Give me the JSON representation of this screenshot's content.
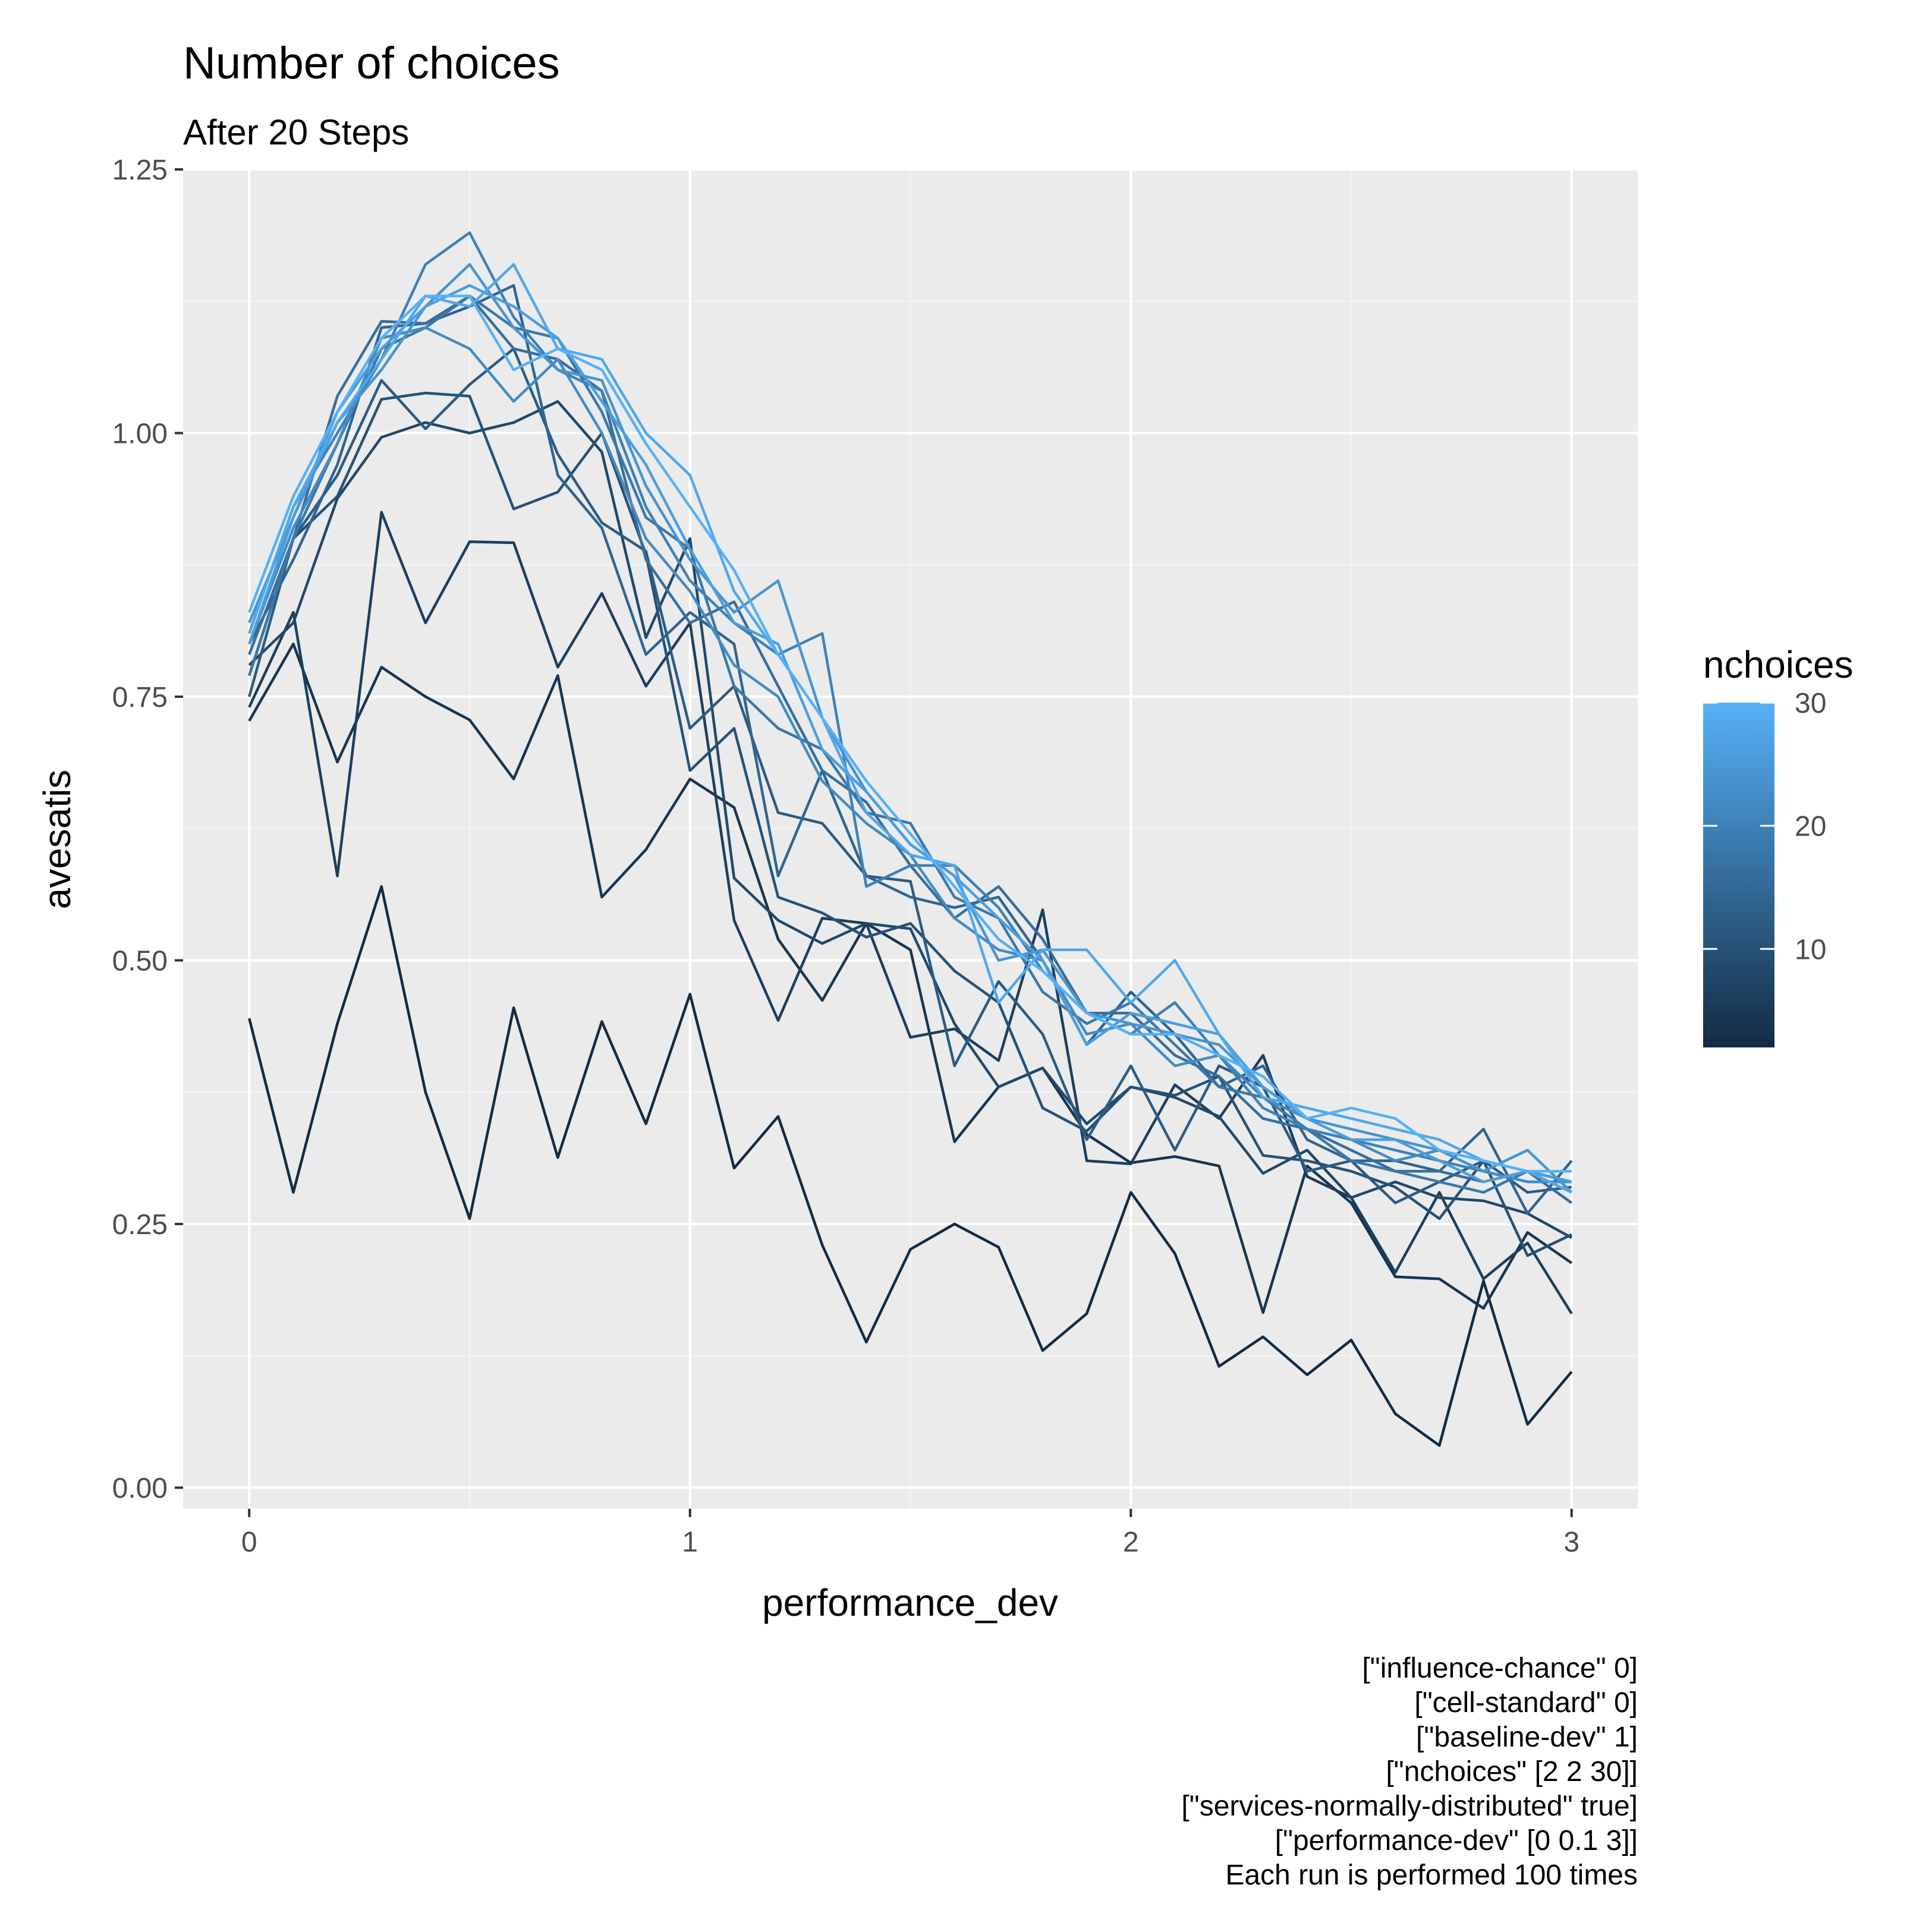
{
  "chart_data": {
    "type": "line",
    "title": "Number of choices",
    "subtitle": "After 20 Steps",
    "xlabel": "performance_dev",
    "ylabel": "avesatis",
    "xlim": [
      -0.15,
      3.15
    ],
    "ylim": [
      -0.02,
      1.25
    ],
    "x_ticks": [
      0,
      1,
      2,
      3
    ],
    "x_tick_labels": [
      "0",
      "1",
      "2",
      "3"
    ],
    "y_ticks": [
      0.0,
      0.25,
      0.5,
      0.75,
      1.0,
      1.25
    ],
    "y_tick_labels": [
      "0.00",
      "0.25",
      "0.50",
      "0.75",
      "1.00",
      "1.25"
    ],
    "grid": true,
    "x": [
      0,
      0.1,
      0.2,
      0.3,
      0.4,
      0.5,
      0.6,
      0.7,
      0.8,
      0.9,
      1.0,
      1.1,
      1.2,
      1.3,
      1.4,
      1.5,
      1.6,
      1.7,
      1.8,
      1.9,
      2.0,
      2.1,
      2.2,
      2.3,
      2.4,
      2.5,
      2.6,
      2.7,
      2.8,
      2.9,
      3.0
    ],
    "legend": {
      "title": "nchoices",
      "type": "colorbar",
      "placement": "right",
      "range": [
        2,
        30
      ],
      "ticks": [
        10,
        20,
        30
      ],
      "tick_labels": [
        "10",
        "20",
        "30"
      ],
      "color_low": "#132B43",
      "color_high": "#56B1F7"
    },
    "series": [
      {
        "nchoices": 2,
        "values": [
          0.445,
          0.28,
          0.44,
          0.57,
          0.375,
          0.255,
          0.455,
          0.313,
          0.442,
          0.345,
          0.468,
          0.303,
          0.352,
          0.23,
          0.138,
          0.226,
          0.25,
          0.228,
          0.13,
          0.165,
          0.28,
          0.222,
          0.115,
          0.143,
          0.107,
          0.14,
          0.07,
          0.04,
          0.196,
          0.06,
          0.11
        ]
      },
      {
        "nchoices": 4,
        "values": [
          0.727,
          0.8,
          0.688,
          0.778,
          0.75,
          0.728,
          0.672,
          0.77,
          0.56,
          0.605,
          0.672,
          0.645,
          0.52,
          0.462,
          0.535,
          0.51,
          0.328,
          0.38,
          0.398,
          0.335,
          0.308,
          0.314,
          0.305,
          0.166,
          0.305,
          0.27,
          0.2,
          0.198,
          0.17,
          0.242,
          0.213
        ]
      },
      {
        "nchoices": 6,
        "values": [
          0.74,
          0.83,
          0.58,
          0.925,
          0.82,
          0.897,
          0.896,
          0.778,
          0.848,
          0.76,
          0.82,
          0.538,
          0.443,
          0.54,
          0.535,
          0.427,
          0.435,
          0.405,
          0.548,
          0.31,
          0.307,
          0.382,
          0.35,
          0.41,
          0.295,
          0.275,
          0.204,
          0.28,
          0.198,
          0.232,
          0.165
        ]
      },
      {
        "nchoices": 8,
        "values": [
          0.78,
          0.82,
          0.938,
          0.996,
          1.01,
          1.0,
          1.01,
          1.03,
          0.982,
          0.806,
          0.9,
          0.578,
          0.538,
          0.516,
          0.535,
          0.53,
          0.44,
          0.38,
          0.398,
          0.345,
          0.38,
          0.37,
          0.352,
          0.298,
          0.32,
          0.275,
          0.29,
          0.275,
          0.272,
          0.26,
          0.237
        ]
      },
      {
        "nchoices": 10,
        "values": [
          0.77,
          0.9,
          0.94,
          1.032,
          1.038,
          1.035,
          0.928,
          0.944,
          1.0,
          0.885,
          0.68,
          0.72,
          0.56,
          0.545,
          0.522,
          0.535,
          0.49,
          0.46,
          0.36,
          0.338,
          0.38,
          0.372,
          0.39,
          0.315,
          0.31,
          0.3,
          0.285,
          0.255,
          0.31,
          0.22,
          0.24
        ]
      },
      {
        "nchoices": 12,
        "values": [
          0.75,
          0.9,
          0.96,
          1.05,
          1.004,
          1.046,
          1.08,
          0.98,
          0.915,
          0.888,
          0.72,
          0.76,
          0.64,
          0.63,
          0.58,
          0.575,
          0.4,
          0.48,
          0.43,
          0.33,
          0.4,
          0.32,
          0.4,
          0.38,
          0.3,
          0.31,
          0.27,
          0.29,
          0.31,
          0.28,
          0.285
        ]
      },
      {
        "nchoices": 14,
        "values": [
          0.8,
          0.88,
          0.97,
          1.1,
          1.104,
          1.12,
          1.14,
          0.96,
          0.91,
          0.79,
          0.83,
          0.8,
          0.58,
          0.68,
          0.58,
          0.56,
          0.55,
          0.56,
          0.5,
          0.42,
          0.47,
          0.43,
          0.38,
          0.4,
          0.33,
          0.31,
          0.31,
          0.3,
          0.34,
          0.26,
          0.31
        ]
      },
      {
        "nchoices": 16,
        "values": [
          0.79,
          0.9,
          1.035,
          1.106,
          1.104,
          1.13,
          1.08,
          1.07,
          1.04,
          0.88,
          0.82,
          0.84,
          0.76,
          0.68,
          0.65,
          0.59,
          0.54,
          0.57,
          0.52,
          0.45,
          0.45,
          0.41,
          0.39,
          0.35,
          0.34,
          0.32,
          0.3,
          0.3,
          0.29,
          0.3,
          0.27
        ]
      },
      {
        "nchoices": 18,
        "values": [
          0.77,
          0.9,
          0.99,
          1.08,
          1.1,
          1.13,
          1.1,
          1.09,
          1.02,
          0.92,
          0.89,
          0.76,
          0.72,
          0.7,
          0.64,
          0.63,
          0.56,
          0.54,
          0.47,
          0.44,
          0.46,
          0.42,
          0.38,
          0.37,
          0.34,
          0.31,
          0.3,
          0.29,
          0.28,
          0.3,
          0.29
        ]
      },
      {
        "nchoices": 20,
        "values": [
          0.81,
          0.93,
          1.0,
          1.07,
          1.16,
          1.19,
          1.11,
          1.06,
          1.04,
          0.93,
          0.86,
          0.82,
          0.79,
          0.81,
          0.57,
          0.59,
          0.59,
          0.55,
          0.49,
          0.45,
          0.43,
          0.46,
          0.41,
          0.36,
          0.34,
          0.33,
          0.32,
          0.31,
          0.3,
          0.29,
          0.29
        ]
      },
      {
        "nchoices": 22,
        "values": [
          0.8,
          0.91,
          0.99,
          1.09,
          1.1,
          1.08,
          1.03,
          1.07,
          1.0,
          0.9,
          0.85,
          0.78,
          0.75,
          0.67,
          0.63,
          0.6,
          0.54,
          0.51,
          0.5,
          0.43,
          0.44,
          0.4,
          0.41,
          0.37,
          0.35,
          0.33,
          0.31,
          0.32,
          0.3,
          0.29,
          0.29
        ]
      },
      {
        "nchoices": 24,
        "values": [
          0.82,
          0.92,
          1.01,
          1.06,
          1.12,
          1.16,
          1.1,
          1.06,
          1.05,
          0.95,
          0.88,
          0.83,
          0.86,
          0.73,
          0.66,
          0.61,
          0.58,
          0.5,
          0.51,
          0.45,
          0.44,
          0.43,
          0.42,
          0.38,
          0.35,
          0.34,
          0.33,
          0.32,
          0.3,
          0.32,
          0.28
        ]
      },
      {
        "nchoices": 26,
        "values": [
          0.8,
          0.92,
          1.02,
          1.08,
          1.12,
          1.14,
          1.12,
          1.09,
          1.03,
          0.97,
          0.89,
          0.82,
          0.8,
          0.7,
          0.66,
          0.61,
          0.58,
          0.54,
          0.5,
          0.42,
          0.45,
          0.44,
          0.43,
          0.38,
          0.35,
          0.33,
          0.33,
          0.31,
          0.29,
          0.3,
          0.29
        ]
      },
      {
        "nchoices": 28,
        "values": [
          0.81,
          0.93,
          1.01,
          1.07,
          1.13,
          1.12,
          1.16,
          1.08,
          1.07,
          1.0,
          0.96,
          0.85,
          0.79,
          0.73,
          0.64,
          0.6,
          0.59,
          0.46,
          0.51,
          0.51,
          0.46,
          0.5,
          0.43,
          0.37,
          0.36,
          0.35,
          0.34,
          0.33,
          0.31,
          0.3,
          0.28
        ]
      },
      {
        "nchoices": 30,
        "values": [
          0.83,
          0.94,
          1.02,
          1.09,
          1.13,
          1.13,
          1.06,
          1.08,
          1.06,
          0.99,
          0.93,
          0.87,
          0.79,
          0.73,
          0.67,
          0.62,
          0.57,
          0.52,
          0.49,
          0.45,
          0.43,
          0.43,
          0.41,
          0.39,
          0.35,
          0.36,
          0.35,
          0.32,
          0.31,
          0.3,
          0.3
        ]
      }
    ],
    "caption": [
      "[\"influence-chance\" 0]",
      "[\"cell-standard\" 0]",
      "[\"baseline-dev\" 1]",
      "[\"nchoices\" [2 2 30]]",
      "[\"services-normally-distributed\" true]",
      "[\"performance-dev\" [0 0.1 3]]",
      "Each run is performed 100 times"
    ],
    "colors": {
      "panel_background": "#EBEBEB",
      "grid_major": "#FFFFFF",
      "grid_minor": "#F5F5F5"
    }
  }
}
